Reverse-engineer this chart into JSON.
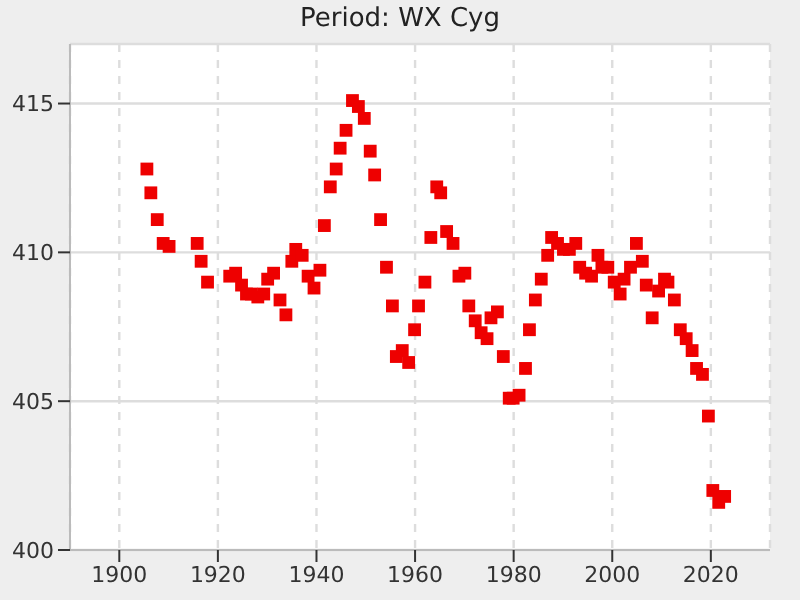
{
  "chart_data": {
    "type": "scatter",
    "title": "Period: WX Cyg",
    "x": [
      1905.6,
      1906.4,
      1907.7,
      1908.9,
      1910.1,
      1915.8,
      1916.6,
      1917.9,
      1922.4,
      1923.6,
      1924.8,
      1925.8,
      1926.8,
      1928.1,
      1929.3,
      1930.1,
      1931.3,
      1932.6,
      1933.8,
      1935.0,
      1935.8,
      1937.1,
      1938.3,
      1939.5,
      1940.7,
      1941.6,
      1942.8,
      1944.0,
      1944.8,
      1946.0,
      1947.3,
      1948.5,
      1949.7,
      1950.9,
      1951.8,
      1953.0,
      1954.2,
      1955.4,
      1956.2,
      1957.4,
      1958.7,
      1959.9,
      1960.7,
      1962.0,
      1963.2,
      1964.4,
      1965.2,
      1966.4,
      1967.7,
      1968.9,
      1970.1,
      1970.9,
      1972.2,
      1973.4,
      1974.6,
      1975.4,
      1976.7,
      1977.9,
      1979.1,
      1979.9,
      1981.1,
      1982.4,
      1983.2,
      1984.4,
      1985.6,
      1986.9,
      1987.7,
      1988.9,
      1990.1,
      1991.3,
      1992.6,
      1993.4,
      1994.6,
      1995.8,
      1997.1,
      1997.9,
      1999.1,
      2000.4,
      2001.6,
      2002.4,
      2003.7,
      2004.9,
      2006.1,
      2006.9,
      2008.1,
      2009.4,
      2010.6,
      2011.3,
      2012.6,
      2013.8,
      2015.0,
      2016.2,
      2017.1,
      2018.3,
      2019.5,
      2020.4,
      2021.6,
      2022.8
    ],
    "series": [
      {
        "color": "#ee0000",
        "values": [
          412.8,
          412.0,
          411.1,
          410.3,
          410.2,
          410.3,
          409.7,
          409.0,
          409.2,
          409.3,
          408.9,
          408.6,
          408.6,
          408.5,
          408.6,
          409.1,
          409.3,
          408.4,
          407.9,
          409.7,
          410.1,
          409.9,
          409.2,
          408.8,
          409.4,
          410.9,
          412.2,
          412.8,
          413.5,
          414.1,
          415.1,
          414.9,
          414.5,
          413.4,
          412.6,
          411.1,
          409.5,
          408.2,
          406.5,
          406.7,
          406.3,
          407.4,
          408.2,
          409.0,
          410.5,
          412.2,
          412.0,
          410.7,
          410.3,
          409.2,
          409.3,
          408.2,
          407.7,
          407.3,
          407.1,
          407.8,
          408.0,
          406.5,
          405.1,
          405.1,
          405.2,
          406.1,
          407.4,
          408.4,
          409.1,
          409.9,
          410.5,
          410.3,
          410.1,
          410.1,
          410.3,
          409.5,
          409.3,
          409.2,
          409.9,
          409.5,
          409.5,
          409.0,
          408.6,
          409.1,
          409.5,
          410.3,
          409.7,
          408.9,
          407.8,
          408.7,
          409.1,
          409.0,
          408.4,
          407.4,
          407.1,
          406.7,
          406.1,
          405.9,
          404.5,
          402.0,
          401.6,
          401.8
        ]
      }
    ],
    "xlim": [
      1890,
      2032
    ],
    "xticks": [
      1900,
      1920,
      1940,
      1960,
      1980,
      2000,
      2020
    ],
    "ylim": [
      400,
      417
    ],
    "yticks": [
      400,
      405,
      410,
      415
    ],
    "grid": true,
    "marker": "square",
    "legend": false
  }
}
